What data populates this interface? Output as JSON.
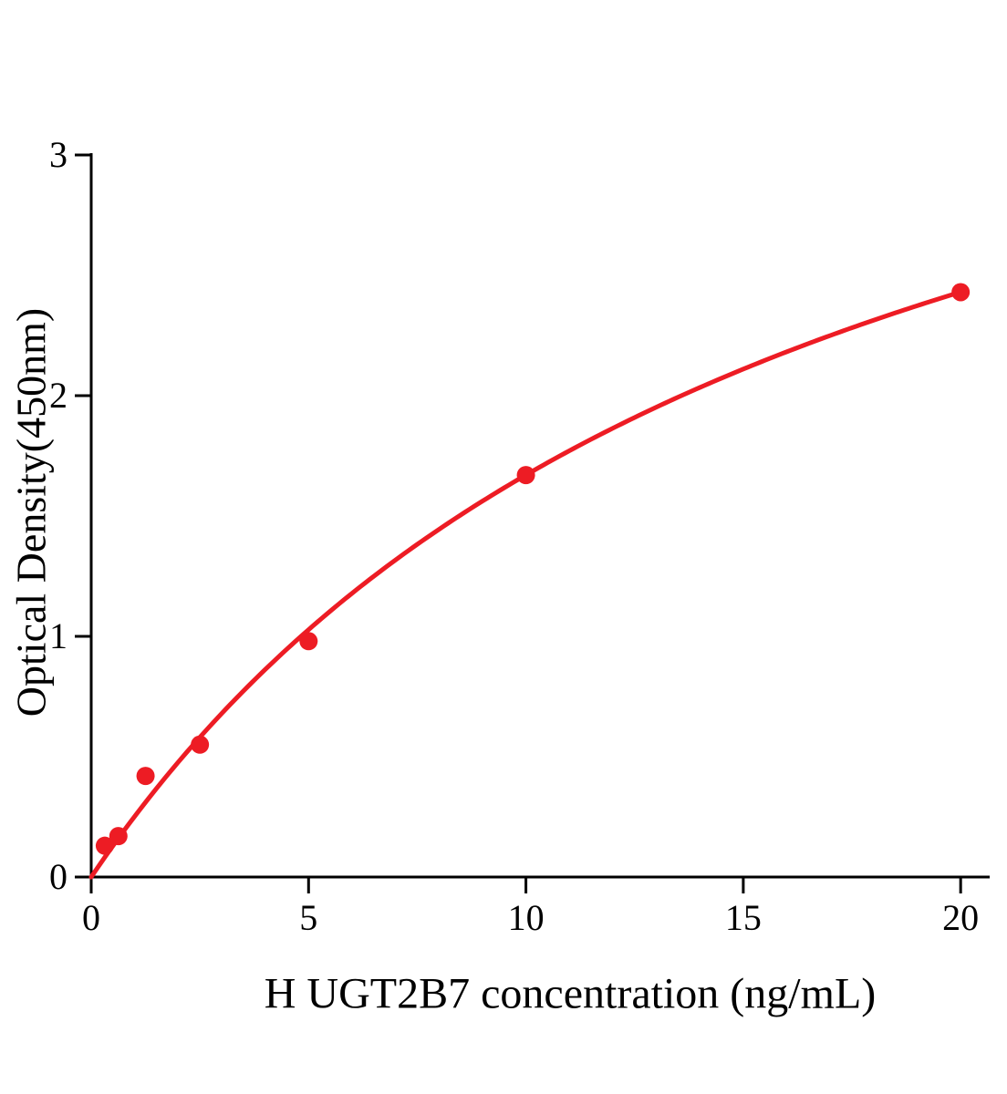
{
  "chart_data": {
    "type": "scatter",
    "title": "",
    "xlabel": "H UGT2B7 concentration (ng/mL)",
    "ylabel": "Optical Density(450nm)",
    "x": [
      0.313,
      0.625,
      1.25,
      2.5,
      5,
      10,
      20
    ],
    "y": [
      0.13,
      0.17,
      0.42,
      0.55,
      0.98,
      1.67,
      2.43
    ],
    "xlim": [
      0,
      20.5
    ],
    "ylim": [
      0,
      3
    ],
    "xticks": [
      0,
      5,
      10,
      15,
      20
    ],
    "yticks": [
      0,
      1,
      2,
      3
    ],
    "grid": false,
    "legend": "none",
    "point_color": "#ed1c24",
    "curve_color": "#ed1c24",
    "axis_color": "#000000",
    "fit": {
      "type": "michaelis-menten",
      "vmax": 4.46,
      "km": 16.7
    }
  }
}
